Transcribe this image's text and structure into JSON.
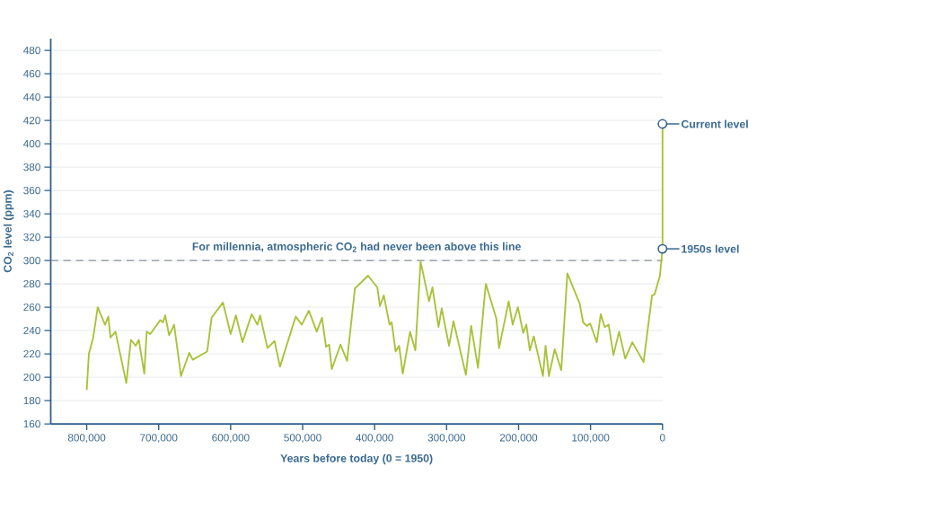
{
  "chart_data": {
    "type": "line",
    "xlabel": "Years before today (0 = 1950)",
    "ylabel": "CO$_{2}$ level (ppm)",
    "xlim": [
      850000,
      0
    ],
    "ylim": [
      160,
      490
    ],
    "xticks": [
      {
        "value": 800000,
        "label": "800,000"
      },
      {
        "value": 700000,
        "label": "700,000"
      },
      {
        "value": 600000,
        "label": "600,000"
      },
      {
        "value": 500000,
        "label": "500,000"
      },
      {
        "value": 400000,
        "label": "400,000"
      },
      {
        "value": 300000,
        "label": "300,000"
      },
      {
        "value": 200000,
        "label": "200,000"
      },
      {
        "value": 100000,
        "label": "100,000"
      },
      {
        "value": 0,
        "label": "0"
      }
    ],
    "yticks": [
      160,
      180,
      200,
      220,
      240,
      260,
      280,
      300,
      320,
      340,
      360,
      380,
      400,
      420,
      440,
      460,
      480
    ],
    "grid": "y",
    "marker": "none",
    "line_style": "solid",
    "ref_lines": [
      {
        "axis": "y",
        "value": 300,
        "label": "For millennia, atmospheric CO$_{2}$ had never been above this line",
        "color": "#8c9196",
        "line_style": "dashed"
      }
    ],
    "annotations": [
      {
        "text": "Current level",
        "x": 0,
        "y": 417
      },
      {
        "text": "1950s level",
        "x": 0,
        "y": 310
      }
    ],
    "series": [
      {
        "color": "#a9c23a",
        "x": [
          800000,
          797000,
          791000,
          784700,
          774500,
          770000,
          767000,
          760000,
          745000,
          738600,
          732000,
          727700,
          720000,
          716700,
          711700,
          697700,
          694000,
          691000,
          685500,
          678600,
          669000,
          657500,
          652700,
          632600,
          626500,
          610700,
          600000,
          592700,
          583600,
          570800,
          562800,
          559100,
          548900,
          539000,
          531500,
          509600,
          501200,
          491300,
          480400,
          473100,
          467500,
          463200,
          459500,
          447400,
          438300,
          427400,
          409100,
          396300,
          392600,
          387200,
          379200,
          376300,
          370800,
          366000,
          360900,
          350700,
          343400,
          336100,
          324400,
          319700,
          311200,
          306800,
          296600,
          290400,
          273200,
          265900,
          256400,
          245500,
          230800,
          227100,
          213700,
          208200,
          200900,
          193600,
          189200,
          184400,
          178900,
          166100,
          162500,
          157800,
          149800,
          140700,
          132200,
          115100,
          110300,
          105200,
          100500,
          91300,
          85800,
          80300,
          74800,
          68200,
          60300,
          51800,
          41900,
          26300,
          14600,
          11000,
          3600,
          0,
          0
        ],
        "values": [
          189,
          220,
          234,
          260,
          245,
          252,
          234,
          239,
          195,
          232,
          227,
          232,
          203,
          239,
          237,
          249,
          247,
          253,
          236,
          245,
          201,
          221,
          215,
          222,
          251,
          264,
          237,
          253,
          230,
          254,
          245,
          253,
          225,
          231,
          209,
          252,
          245,
          257,
          239,
          251,
          226,
          228,
          207,
          228,
          214,
          276,
          287,
          277,
          261,
          270,
          245,
          247,
          222,
          227,
          203,
          239,
          223,
          299,
          265,
          277,
          243,
          259,
          227,
          248,
          202,
          244,
          208,
          280,
          250,
          225,
          265,
          245,
          260,
          238,
          245,
          223,
          235,
          201,
          227,
          201,
          224,
          206,
          289,
          263,
          247,
          244,
          246,
          230,
          254,
          243,
          245,
          219,
          239,
          216,
          230,
          213,
          270,
          271,
          287,
          310,
          417
        ]
      }
    ]
  }
}
